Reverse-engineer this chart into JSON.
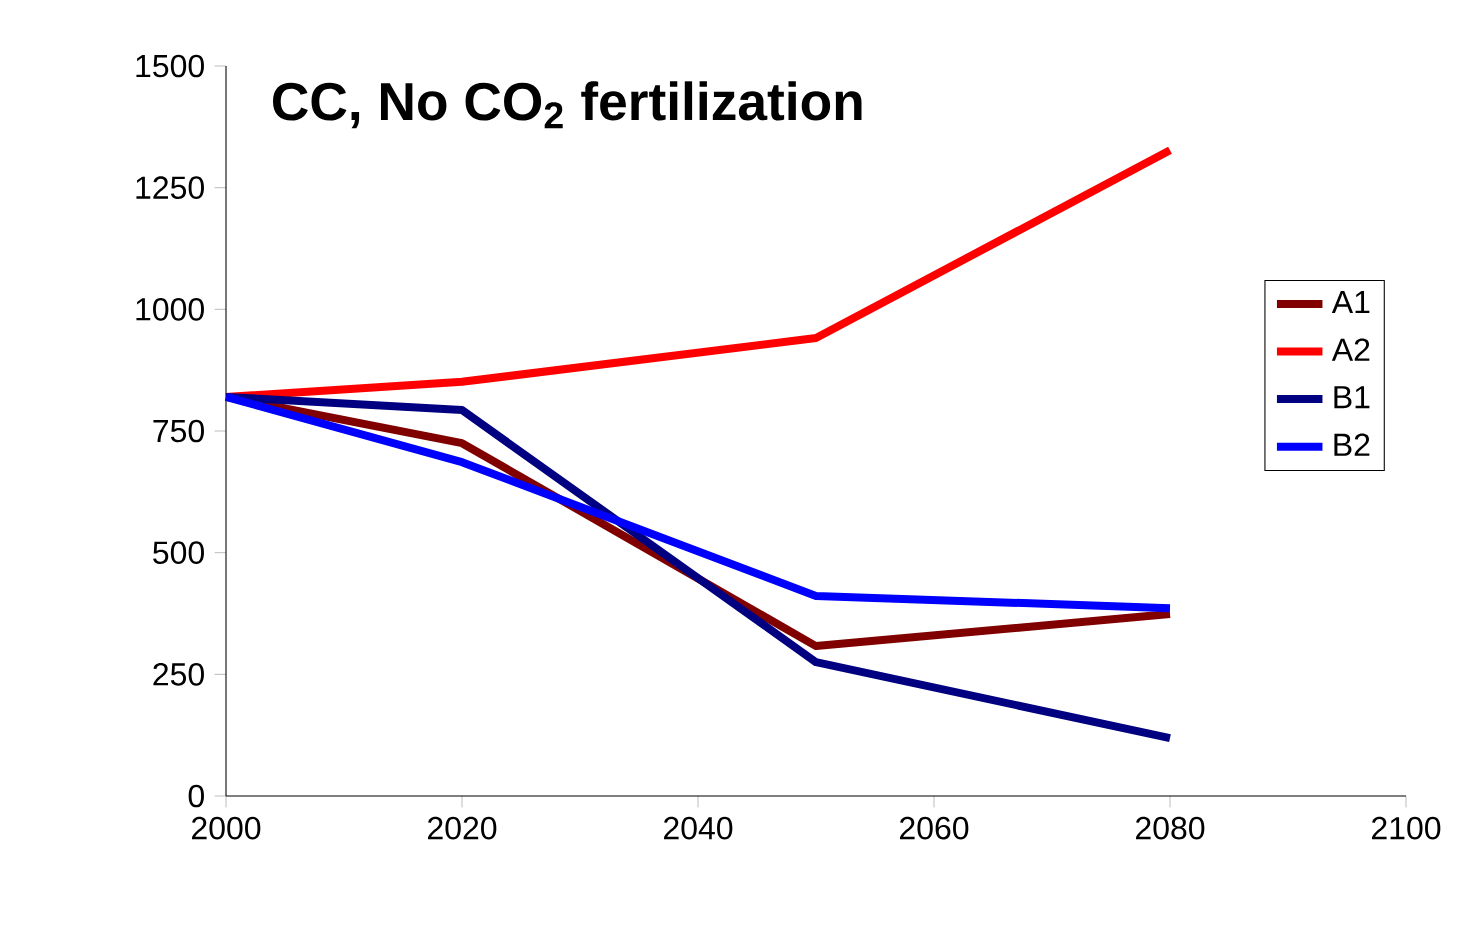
{
  "chart_data": {
    "type": "line",
    "title": "CC, No CO$_{2}$ fertilization",
    "x": [
      2000,
      2020,
      2050,
      2080
    ],
    "series": [
      {
        "name": "A1",
        "color": "#800000",
        "values": [
          820,
          725,
          308,
          374
        ]
      },
      {
        "name": "A2",
        "color": "#ff0000",
        "values": [
          820,
          851,
          941,
          1327
        ]
      },
      {
        "name": "B1",
        "color": "#000080",
        "values": [
          820,
          793,
          275,
          119
        ]
      },
      {
        "name": "B2",
        "color": "#0000ff",
        "values": [
          820,
          686,
          411,
          386
        ]
      }
    ],
    "xlim": [
      2000,
      2100
    ],
    "ylim": [
      0,
      1500
    ],
    "xticks": [
      2000,
      2020,
      2040,
      2060,
      2080,
      2100
    ],
    "yticks": [
      0,
      250,
      500,
      750,
      1000,
      1250,
      1500
    ],
    "grid": false,
    "legend": "right",
    "marker": "none",
    "line_style": "solid"
  }
}
